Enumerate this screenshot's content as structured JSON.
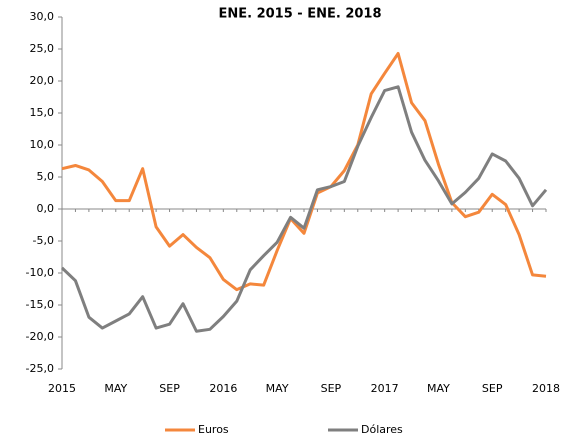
{
  "chart_data": {
    "type": "line",
    "title": "ENE. 2015 - ENE. 2018",
    "categories": [
      "2015",
      null,
      null,
      null,
      "MAY",
      null,
      null,
      null,
      "SEP",
      null,
      null,
      null,
      "2016",
      null,
      null,
      null,
      "MAY",
      null,
      null,
      null,
      "SEP",
      null,
      null,
      null,
      "2017",
      null,
      null,
      null,
      "MAY",
      null,
      null,
      null,
      "SEP",
      null,
      null,
      null,
      "2018"
    ],
    "series": [
      {
        "name": "Euros",
        "color": "#f4873c",
        "values": [
          6.3,
          6.8,
          6.1,
          4.3,
          1.3,
          1.3,
          6.3,
          -2.8,
          -5.8,
          -4.0,
          -6.0,
          -7.6,
          -11.0,
          -12.6,
          -11.7,
          -11.9,
          -6.5,
          -1.5,
          -3.8,
          2.5,
          3.5,
          6.0,
          10.0,
          18.0,
          21.2,
          24.3,
          16.6,
          13.8,
          7.0,
          1.0,
          -1.2,
          -0.5,
          2.3,
          0.7,
          -4.0,
          -10.3,
          -10.5
        ]
      },
      {
        "name": "Dólares",
        "color": "#7f7f7f",
        "values": [
          -9.2,
          -11.2,
          -16.9,
          -18.6,
          -17.5,
          -16.4,
          -13.7,
          -18.6,
          -18.0,
          -14.8,
          -19.1,
          -18.8,
          -16.8,
          -14.4,
          -9.5,
          -7.3,
          -5.2,
          -1.3,
          -3.0,
          3.0,
          3.5,
          4.3,
          9.8,
          14.3,
          18.5,
          19.1,
          12.0,
          7.6,
          4.4,
          0.8,
          2.6,
          4.8,
          8.6,
          7.5,
          4.8,
          0.5,
          3.0
        ]
      }
    ],
    "ylim": [
      -25,
      30
    ],
    "yticks": [
      {
        "value": -25,
        "label": "-25,0"
      },
      {
        "value": -20,
        "label": "-20,0"
      },
      {
        "value": -15,
        "label": "-15,0"
      },
      {
        "value": -10,
        "label": "-10,0"
      },
      {
        "value": -5,
        "label": "-5,0"
      },
      {
        "value": 0,
        "label": "0,0"
      },
      {
        "value": 5,
        "label": "5,0"
      },
      {
        "value": 10,
        "label": "10,0"
      },
      {
        "value": 15,
        "label": "15,0"
      },
      {
        "value": 20,
        "label": "20,0"
      },
      {
        "value": 25,
        "label": "25,0"
      },
      {
        "value": 30,
        "label": "30,0"
      }
    ],
    "grid": false,
    "legend": "bottom"
  }
}
